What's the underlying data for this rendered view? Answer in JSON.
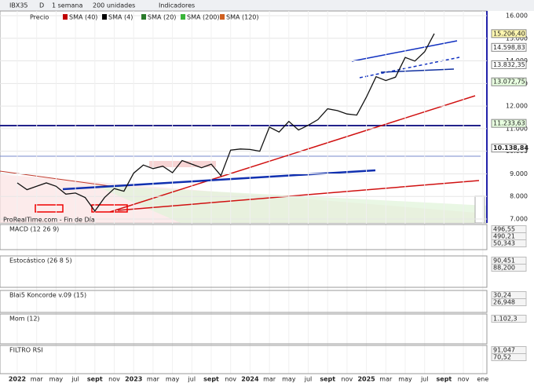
{
  "toolbar": {
    "symbol": "IBX35",
    "letter": "D",
    "period": "1 semana",
    "units": "200 unidades",
    "indicators": "Indicadores"
  },
  "chart_data": {
    "type": "line",
    "watermark": "ProRealTime.com - Fin de Día",
    "x": [
      "2022-01",
      "2022-02",
      "2022-03",
      "2022-04",
      "2022-05",
      "2022-06",
      "2022-07",
      "2022-08",
      "2022-09",
      "2022-10",
      "2022-11",
      "2022-12",
      "2023-01",
      "2023-02",
      "2023-03",
      "2023-04",
      "2023-05",
      "2023-06",
      "2023-07",
      "2023-08",
      "2023-09",
      "2023-10",
      "2023-11",
      "2023-12",
      "2024-01",
      "2024-02",
      "2024-03",
      "2024-04",
      "2024-05",
      "2024-06",
      "2024-07",
      "2024-08",
      "2024-09",
      "2024-10",
      "2024-11",
      "2024-12",
      "2025-01",
      "2025-02",
      "2025-03",
      "2025-04",
      "2025-05",
      "2025-06",
      "2025-07",
      "2025-08"
    ],
    "series": [
      {
        "name": "Precio",
        "color": "#111111",
        "values": [
          8600,
          8300,
          8450,
          8600,
          8450,
          8100,
          8150,
          7950,
          7350,
          7950,
          8350,
          8230,
          9030,
          9390,
          9230,
          9340,
          9050,
          9590,
          9430,
          9270,
          9430,
          8920,
          10050,
          10100,
          10080,
          10000,
          11070,
          10850,
          11320,
          10940,
          11150,
          11400,
          11880,
          11800,
          11650,
          11600,
          12400,
          13300,
          13130,
          13280,
          14150,
          13990,
          14400,
          15206.4
        ]
      }
    ],
    "legend": [
      "SMA (40)",
      "SMA (4)",
      "SMA (20)",
      "SMA (200)",
      "SMA (120)"
    ],
    "ylim": [
      7000,
      16000
    ],
    "yticks": [
      {
        "value": 7000,
        "label": "7.000"
      },
      {
        "value": 8000,
        "label": "8.000"
      },
      {
        "value": 9000,
        "label": "9.000"
      },
      {
        "value": 10000,
        "label": "10.000"
      },
      {
        "value": 11000,
        "label": "11.000"
      },
      {
        "value": 12000,
        "label": "12.000"
      },
      {
        "value": 13000,
        "label": "13.000"
      },
      {
        "value": 14000,
        "label": "14.000"
      },
      {
        "value": 15000,
        "label": "15.000"
      },
      {
        "value": 16000,
        "label": "16.000"
      }
    ],
    "xticks": [
      {
        "value": "2022-01",
        "label": "2022"
      },
      {
        "value": "2022-03",
        "label": "mar"
      },
      {
        "value": "2022-05",
        "label": "may"
      },
      {
        "value": "2022-07",
        "label": "jul"
      },
      {
        "value": "2022-09",
        "label": "sept"
      },
      {
        "value": "2022-11",
        "label": "nov"
      },
      {
        "value": "2023-01",
        "label": "2023"
      },
      {
        "value": "2023-03",
        "label": "mar"
      },
      {
        "value": "2023-05",
        "label": "may"
      },
      {
        "value": "2023-07",
        "label": "jul"
      },
      {
        "value": "2023-09",
        "label": "sept"
      },
      {
        "value": "2023-11",
        "label": "nov"
      },
      {
        "value": "2024-01",
        "label": "2024"
      },
      {
        "value": "2024-03",
        "label": "mar"
      },
      {
        "value": "2024-05",
        "label": "may"
      },
      {
        "value": "2024-07",
        "label": "jul"
      },
      {
        "value": "2024-09",
        "label": "sept"
      },
      {
        "value": "2024-11",
        "label": "nov"
      },
      {
        "value": "2025-01",
        "label": "2025"
      },
      {
        "value": "2025-03",
        "label": "mar"
      },
      {
        "value": "2025-05",
        "label": "may"
      },
      {
        "value": "2025-07",
        "label": "jul"
      },
      {
        "value": "2025-09",
        "label": "sept"
      },
      {
        "value": "2025-11",
        "label": "nov"
      },
      {
        "value": "2026-01",
        "label": "ene"
      }
    ],
    "price_labels": [
      {
        "value": 15206.4,
        "label": "15.206,40",
        "color": "#fff7b0"
      },
      {
        "value": 14598.83,
        "label": "14.598,83",
        "color": "#ffffff"
      },
      {
        "value": 13832.35,
        "label": "13.832,35",
        "color": "#ffffff"
      },
      {
        "value": 13072.75,
        "label": "13.072,75",
        "color": "#e8ffe0"
      },
      {
        "value": 11233.63,
        "label": "11.233,63",
        "color": "#e8ffe0"
      },
      {
        "value": 10138.84,
        "label": "10.138,84",
        "color": "#ffffff"
      }
    ]
  },
  "panels": [
    {
      "title": "MACD (12 26 9)",
      "labels": [
        "496,55",
        "490,21",
        "50,343"
      ]
    },
    {
      "title": "Estocástico (26 8 5)",
      "labels": [
        "90,451",
        "88,200"
      ]
    },
    {
      "title": "Blai5 Koncorde v.09 (15)",
      "labels": [
        "30,24",
        "26,948"
      ]
    },
    {
      "title": "Mom (12)",
      "labels": [
        "1.102,3"
      ]
    },
    {
      "title": "FILTRO RSI",
      "labels": [
        "91,047",
        "70,52"
      ]
    }
  ]
}
